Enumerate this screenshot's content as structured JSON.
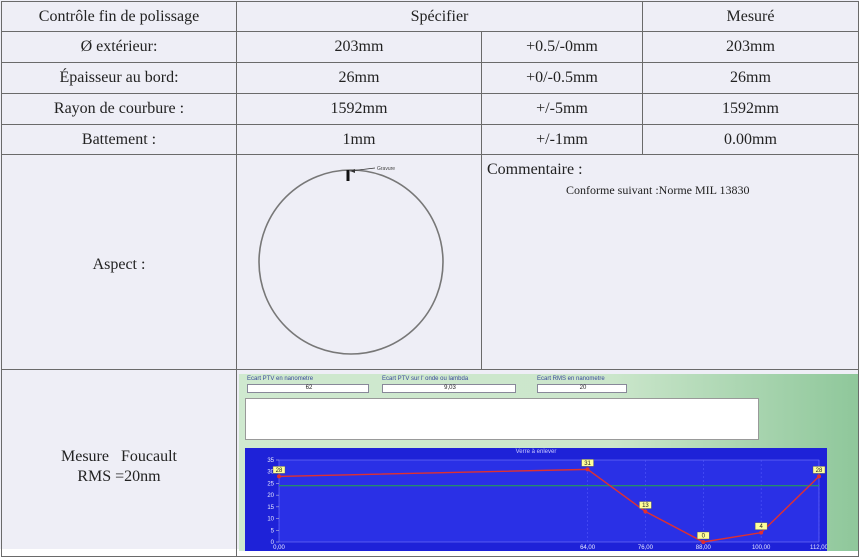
{
  "header": {
    "col1": "Contrôle fin de polissage",
    "col2": "Spécifier",
    "col3": "Mesuré"
  },
  "rows": [
    {
      "label": "Ø extérieur:",
      "spec": "203mm",
      "tol": "+0.5/-0mm",
      "measured": "203mm"
    },
    {
      "label": "Épaisseur au bord:",
      "spec": "26mm",
      "tol": "+0/-0.5mm",
      "measured": "26mm"
    },
    {
      "label": "Rayon de courbure :",
      "spec": "1592mm",
      "tol": "+/-5mm",
      "measured": "1592mm"
    },
    {
      "label": "Battement :",
      "spec": "1mm",
      "tol": "+/-1mm",
      "measured": "0.00mm"
    }
  ],
  "aspect": {
    "label": "Aspect :",
    "marker_label": "Gravure"
  },
  "comment": {
    "title": "Commentaire :",
    "text": "Conforme suivant :Norme MIL 13830"
  },
  "foucault": {
    "line1": "Mesure   Foucault",
    "line2": "RMS =20nm"
  },
  "software": {
    "fields": [
      {
        "label": "Ecart PTV en nanometre",
        "value": "62"
      },
      {
        "label": "Ecart PTV sur l' onde ou lambda",
        "value": "9,03"
      },
      {
        "label": "Ecart RMS en nanometre",
        "value": "20"
      }
    ],
    "plot_title": "Verre à enlever"
  },
  "chart_data": {
    "type": "line",
    "title": "Verre à enlever",
    "x": [
      0.0,
      64.0,
      76.0,
      88.0,
      100.0,
      112.0
    ],
    "values": [
      28,
      31,
      13,
      0,
      4,
      28
    ],
    "x_tick_labels": [
      "0,00",
      "64,00",
      "76,00",
      "88,00",
      "100,00",
      "112,00"
    ],
    "y_ticks": [
      0,
      5,
      10,
      15,
      20,
      25,
      30,
      35
    ],
    "ylim": [
      0,
      35
    ],
    "xlim": [
      0,
      112
    ],
    "reference_level": 24,
    "colors": {
      "line": "#e03030",
      "background": "#1e22d8",
      "reference": "#22aa44",
      "label_box": "#ffff99"
    }
  }
}
